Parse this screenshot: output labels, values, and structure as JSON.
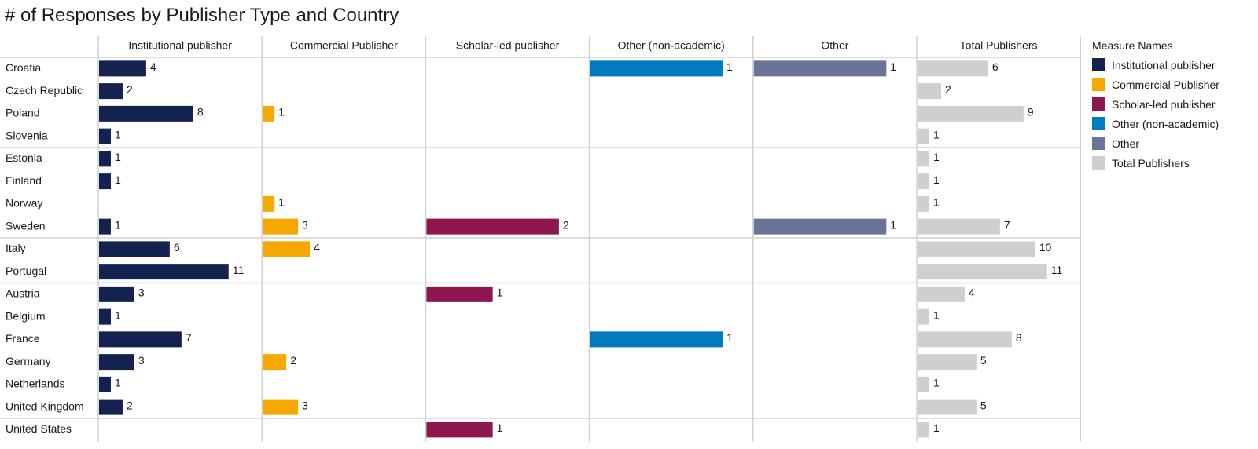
{
  "title": "# of Responses by Publisher Type and Country",
  "legend": {
    "title": "Measure Names",
    "items": [
      {
        "label": "Institutional publisher",
        "color": "#13224f"
      },
      {
        "label": "Commercial Publisher",
        "color": "#f7a800"
      },
      {
        "label": "Scholar-led publisher",
        "color": "#8e1752"
      },
      {
        "label": "Other (non-academic)",
        "color": "#007bbd"
      },
      {
        "label": "Other",
        "color": "#6b7496"
      },
      {
        "label": "Total Publishers",
        "color": "#cfcfcf"
      }
    ]
  },
  "chart_data": {
    "type": "bar",
    "orientation": "horizontal",
    "title": "# of Responses by Publisher Type and Country",
    "legend_position": "right",
    "grid": true,
    "data_labels": true,
    "categories": [
      "Croatia",
      "Czech Republic",
      "Poland",
      "Slovenia",
      "Estonia",
      "Finland",
      "Norway",
      "Sweden",
      "Italy",
      "Portugal",
      "Austria",
      "Belgium",
      "France",
      "Germany",
      "Netherlands",
      "United Kingdom",
      "United States"
    ],
    "groups": [
      [
        "Croatia",
        "Czech Republic",
        "Poland",
        "Slovenia"
      ],
      [
        "Estonia",
        "Finland",
        "Norway",
        "Sweden"
      ],
      [
        "Italy",
        "Portugal"
      ],
      [
        "Austria",
        "Belgium",
        "France",
        "Germany",
        "Netherlands",
        "United Kingdom"
      ],
      [
        "United States"
      ]
    ],
    "series": [
      {
        "name": "Institutional publisher",
        "color": "#13224f",
        "xlim": [
          0,
          13.5
        ],
        "values": [
          4,
          2,
          8,
          1,
          1,
          1,
          null,
          1,
          6,
          11,
          3,
          1,
          7,
          3,
          1,
          2,
          null
        ]
      },
      {
        "name": "Commercial Publisher",
        "color": "#f7a800",
        "xlim": [
          0,
          13.5
        ],
        "values": [
          null,
          null,
          1,
          null,
          null,
          null,
          1,
          3,
          4,
          null,
          null,
          null,
          null,
          2,
          null,
          3,
          null
        ]
      },
      {
        "name": "Scholar-led publisher",
        "color": "#8e1752",
        "xlim": [
          0,
          2.4
        ],
        "values": [
          null,
          null,
          null,
          null,
          null,
          null,
          null,
          2,
          null,
          null,
          1,
          null,
          null,
          null,
          null,
          null,
          1
        ]
      },
      {
        "name": "Other (non-academic)",
        "color": "#007bbd",
        "xlim": [
          0,
          1.2
        ],
        "values": [
          1,
          null,
          null,
          null,
          null,
          null,
          null,
          null,
          null,
          null,
          null,
          null,
          1,
          null,
          null,
          null,
          null
        ]
      },
      {
        "name": "Other",
        "color": "#6b7496",
        "xlim": [
          0,
          1.2
        ],
        "values": [
          1,
          null,
          null,
          null,
          null,
          null,
          null,
          1,
          null,
          null,
          null,
          null,
          null,
          null,
          null,
          null,
          null
        ]
      },
      {
        "name": "Total Publishers",
        "color": "#cfcfcf",
        "xlim": [
          0,
          13.5
        ],
        "values": [
          6,
          2,
          9,
          1,
          1,
          1,
          1,
          7,
          10,
          11,
          4,
          1,
          8,
          5,
          1,
          5,
          1
        ]
      }
    ]
  }
}
